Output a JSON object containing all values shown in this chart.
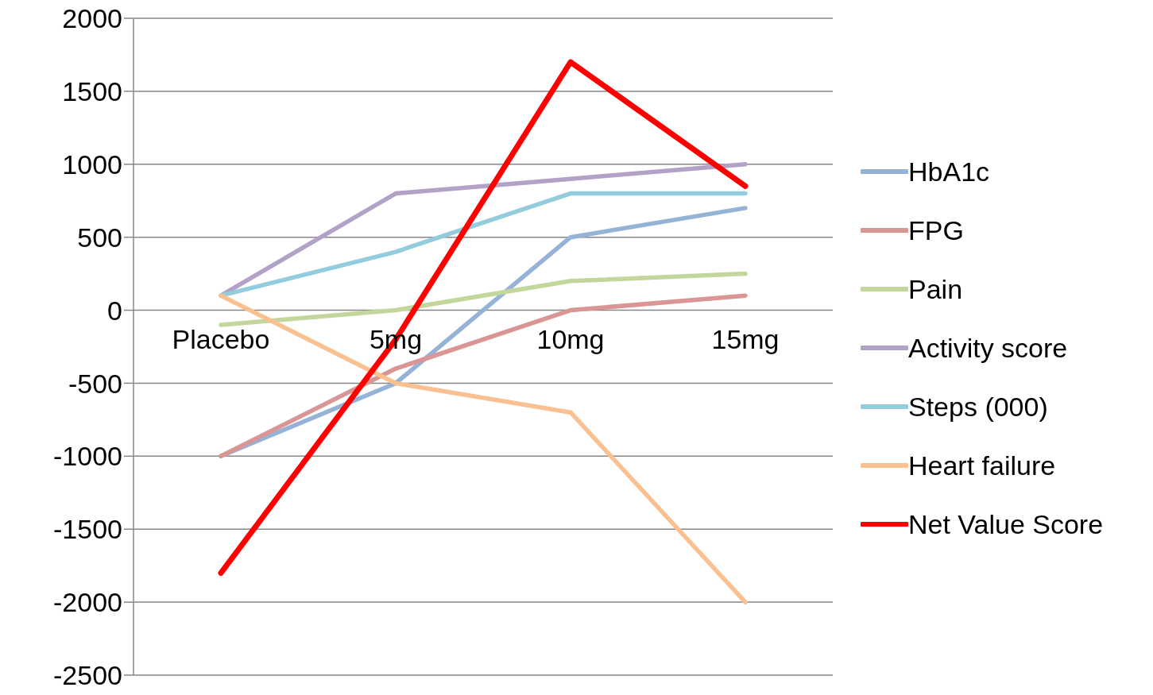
{
  "chart_data": {
    "type": "line",
    "categories": [
      "Placebo",
      "5mg",
      "10mg",
      "15mg"
    ],
    "series": [
      {
        "name": "HbA1c",
        "color": "#95b3d7",
        "values": [
          -1000,
          -500,
          500,
          700
        ]
      },
      {
        "name": "FPG",
        "color": "#d99694",
        "values": [
          -1000,
          -400,
          0,
          100
        ]
      },
      {
        "name": "Pain",
        "color": "#c3d69b",
        "values": [
          -100,
          0,
          200,
          250
        ]
      },
      {
        "name": "Activity score",
        "color": "#b3a2c7",
        "values": [
          100,
          800,
          900,
          1000
        ]
      },
      {
        "name": "Steps (000)",
        "color": "#93cddd",
        "values": [
          100,
          400,
          800,
          800
        ]
      },
      {
        "name": "Heart failure",
        "color": "#fac090",
        "values": [
          100,
          -500,
          -700,
          -2000
        ]
      },
      {
        "name": "Net Value Score",
        "color": "#ff0000",
        "values": [
          -1800,
          -200,
          1700,
          850
        ]
      }
    ],
    "ylim": [
      -2500,
      2000
    ],
    "yticks": [
      -2500,
      -2000,
      -1500,
      -1000,
      -500,
      0,
      500,
      1000,
      1500,
      2000
    ],
    "grid": "y",
    "legend": "right",
    "marker": "none",
    "line_style": "solid"
  }
}
